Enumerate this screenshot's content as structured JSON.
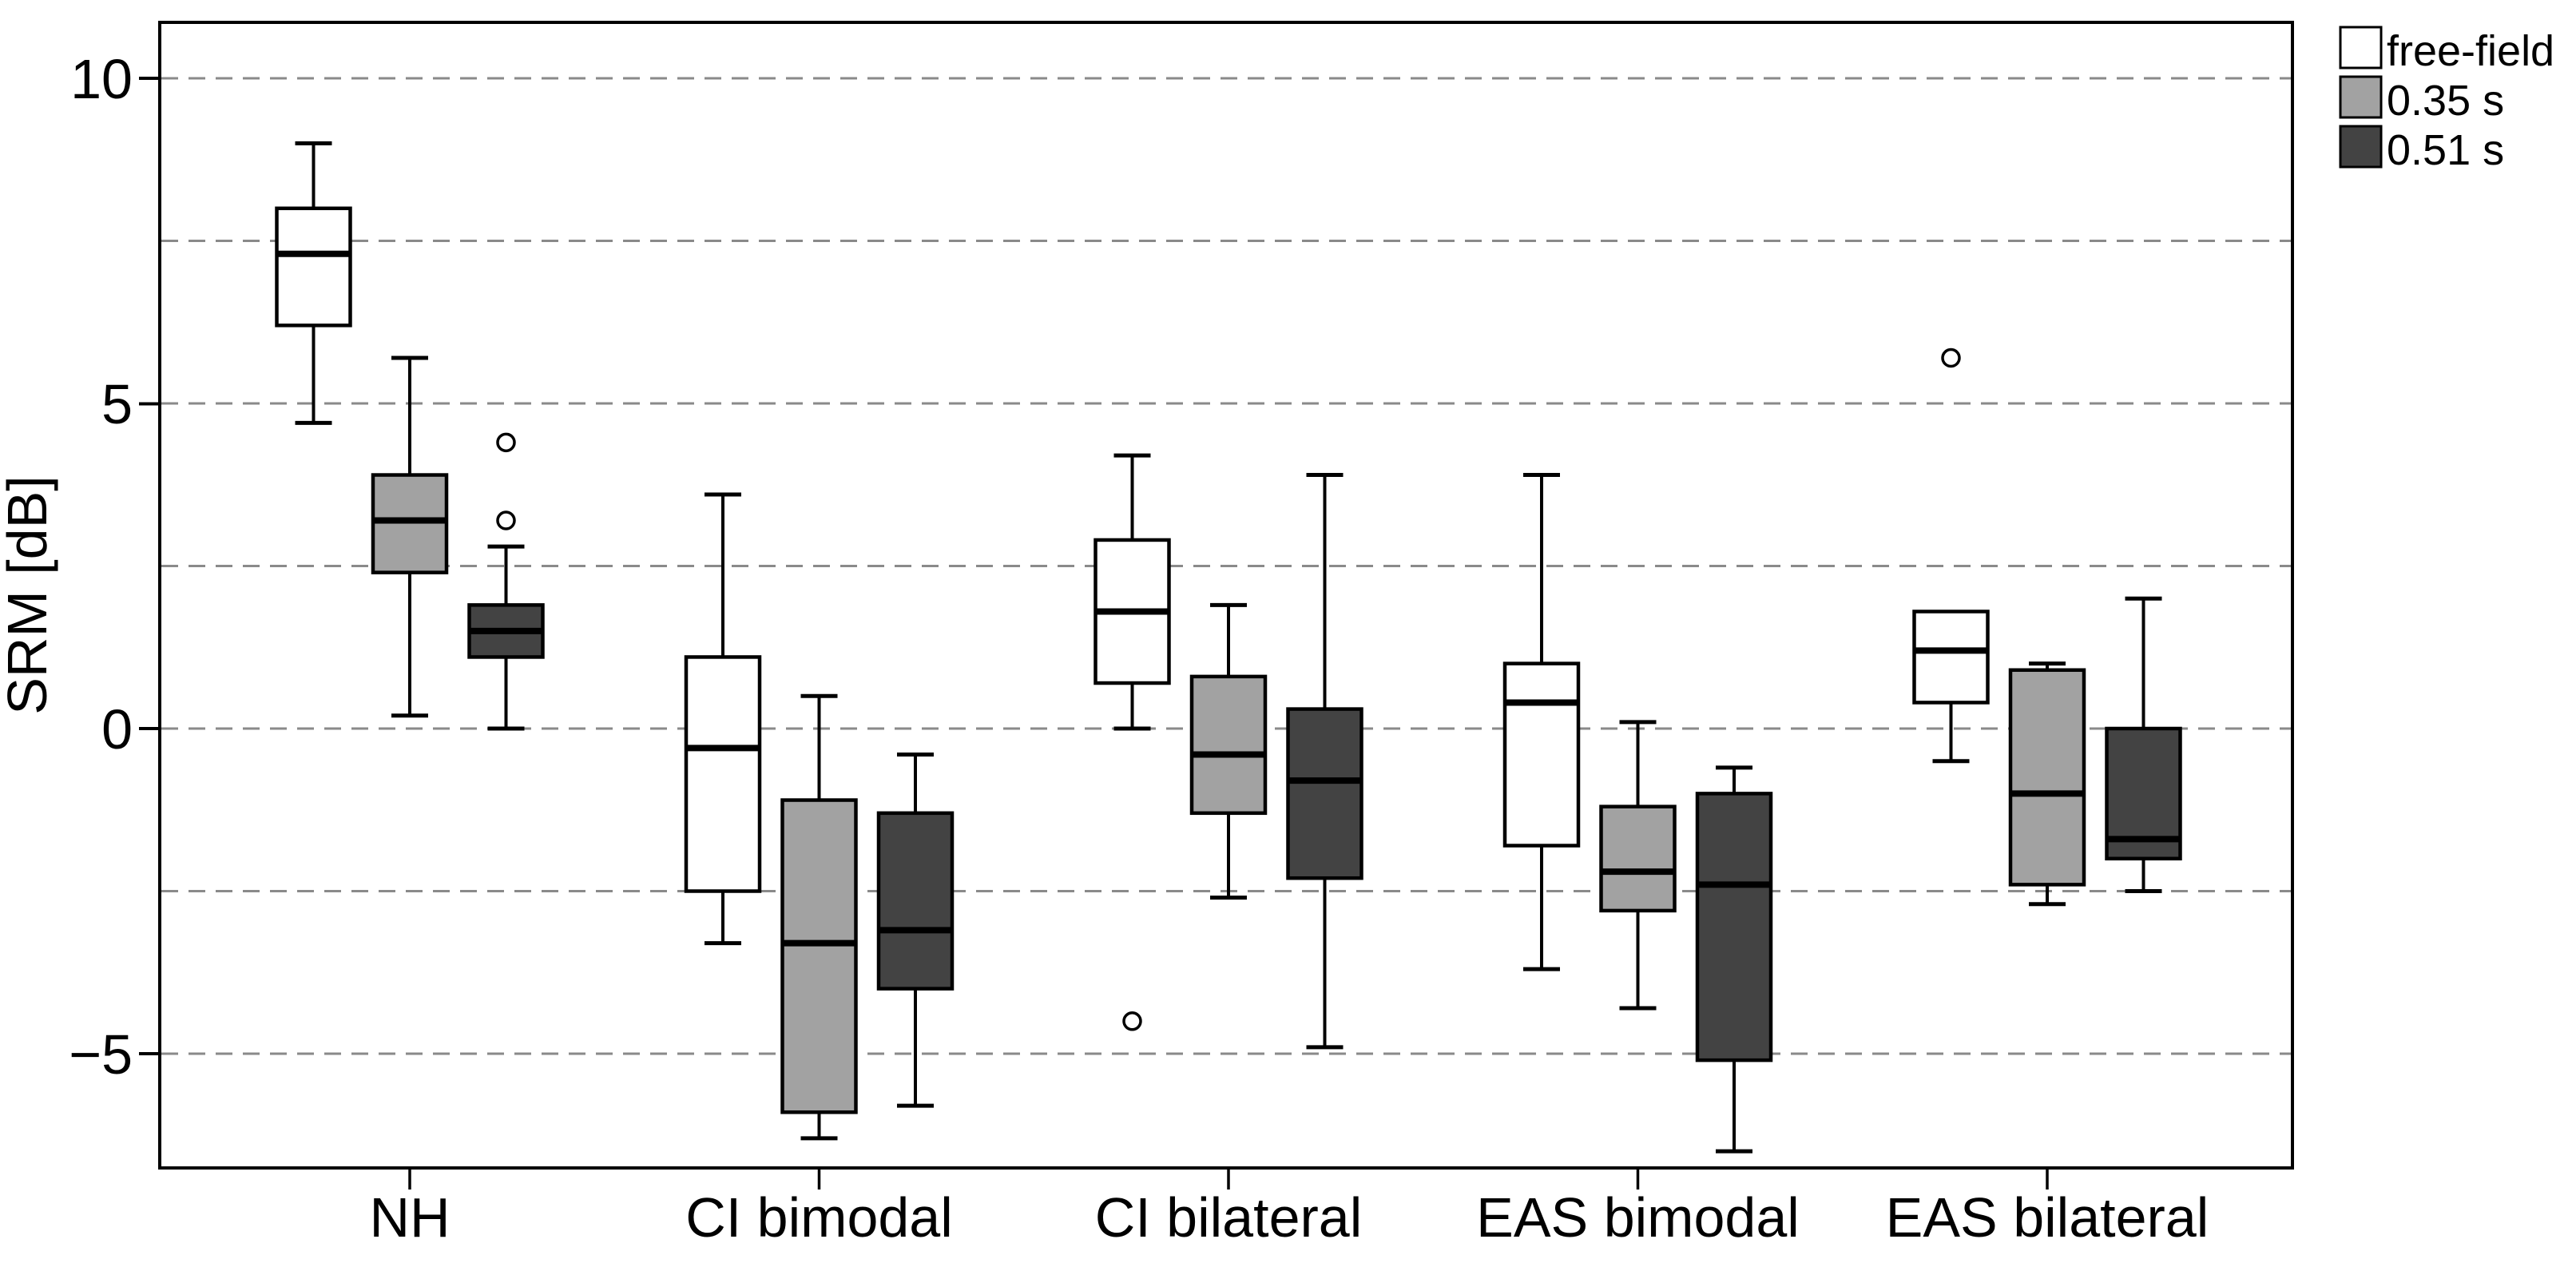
{
  "chart_data": {
    "type": "boxplot",
    "title": "",
    "xlabel": "",
    "ylabel": "SRM [dB]",
    "categories": [
      "NH",
      "CI bimodal",
      "CI bilateral",
      "EAS bimodal",
      "EAS bilateral"
    ],
    "yticks": [
      10,
      5,
      0,
      -5
    ],
    "ytick_labels": [
      "10",
      "5",
      "0",
      "−5"
    ],
    "gridlines": [
      10,
      7.5,
      5,
      2.5,
      0,
      -2.5,
      -5
    ],
    "ylim": [
      -6.76,
      10.86
    ],
    "grid": "horizontal dashed lines every 2.5 dB",
    "legend_position": "top-right outside plot",
    "legend": [
      {
        "label": "free-field",
        "color": "#ffffff"
      },
      {
        "label": "0.35 s",
        "color": "#a2a2a2"
      },
      {
        "label": "0.51 s",
        "color": "#434343"
      }
    ],
    "series": [
      {
        "name": "free-field",
        "fill": "#ffffff",
        "boxes": [
          {
            "category": "NH",
            "whisker_low": 4.7,
            "q1": 6.2,
            "median": 7.3,
            "q3": 8.0,
            "whisker_high": 9.0,
            "outliers": []
          },
          {
            "category": "CI bimodal",
            "whisker_low": -3.3,
            "q1": -2.5,
            "median": -0.3,
            "q3": 1.1,
            "whisker_high": 3.6,
            "outliers": []
          },
          {
            "category": "CI bilateral",
            "whisker_low": 0.0,
            "q1": 0.7,
            "median": 1.8,
            "q3": 2.9,
            "whisker_high": 4.2,
            "outliers": [
              -4.5
            ]
          },
          {
            "category": "EAS bimodal",
            "whisker_low": -3.7,
            "q1": -1.8,
            "median": 0.4,
            "q3": 1.0,
            "whisker_high": 3.9,
            "outliers": []
          },
          {
            "category": "EAS bilateral",
            "whisker_low": -0.5,
            "q1": 0.4,
            "median": 1.2,
            "q3": 1.8,
            "whisker_high": null,
            "outliers": [
              5.7
            ]
          }
        ]
      },
      {
        "name": "0.35 s",
        "fill": "#a2a2a2",
        "boxes": [
          {
            "category": "NH",
            "whisker_low": 0.2,
            "q1": 2.4,
            "median": 3.2,
            "q3": 3.9,
            "whisker_high": 5.7,
            "outliers": []
          },
          {
            "category": "CI bimodal",
            "whisker_low": -6.3,
            "q1": -5.9,
            "median": -3.3,
            "q3": -1.1,
            "whisker_high": 0.5,
            "outliers": []
          },
          {
            "category": "CI bilateral",
            "whisker_low": -2.6,
            "q1": -1.3,
            "median": -0.4,
            "q3": 0.8,
            "whisker_high": 1.9,
            "outliers": []
          },
          {
            "category": "EAS bimodal",
            "whisker_low": -4.3,
            "q1": -2.8,
            "median": -2.2,
            "q3": -1.2,
            "whisker_high": 0.1,
            "outliers": []
          },
          {
            "category": "EAS bilateral",
            "whisker_low": -2.7,
            "q1": -2.4,
            "median": -1.0,
            "q3": 0.9,
            "whisker_high": 1.0,
            "outliers": []
          }
        ]
      },
      {
        "name": "0.51 s",
        "fill": "#434343",
        "boxes": [
          {
            "category": "NH",
            "whisker_low": 0.0,
            "q1": 1.1,
            "median": 1.5,
            "q3": 1.9,
            "whisker_high": 2.8,
            "outliers": [
              3.2,
              4.4
            ]
          },
          {
            "category": "CI bimodal",
            "whisker_low": -5.8,
            "q1": -4.0,
            "median": -3.1,
            "q3": -1.3,
            "whisker_high": -0.4,
            "outliers": []
          },
          {
            "category": "CI bilateral",
            "whisker_low": -4.9,
            "q1": -2.3,
            "median": -0.8,
            "q3": 0.3,
            "whisker_high": 3.9,
            "outliers": []
          },
          {
            "category": "EAS bimodal",
            "whisker_low": -6.5,
            "q1": -5.1,
            "median": -2.4,
            "q3": -1.0,
            "whisker_high": -0.6,
            "outliers": []
          },
          {
            "category": "EAS bilateral",
            "whisker_low": -2.5,
            "q1": -2.0,
            "median": -1.7,
            "q3": 0.0,
            "whisker_high": 2.0,
            "outliers": []
          }
        ]
      }
    ]
  }
}
